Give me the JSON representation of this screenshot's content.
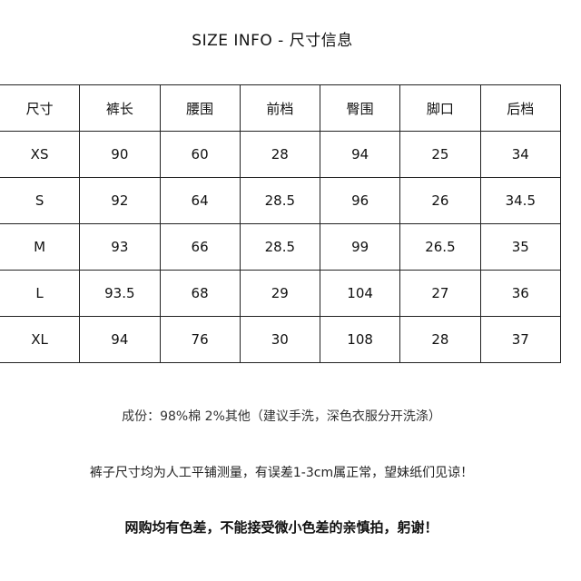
{
  "title": "SIZE INFO - 尺寸信息",
  "table": {
    "headers": [
      "尺寸",
      "裤长",
      "腰围",
      "前档",
      "臀围",
      "脚口",
      "后档"
    ],
    "rows": [
      [
        "XS",
        "90",
        "60",
        "28",
        "94",
        "25",
        "34"
      ],
      [
        "S",
        "92",
        "64",
        "28.5",
        "96",
        "26",
        "34.5"
      ],
      [
        "M",
        "93",
        "66",
        "28.5",
        "99",
        "26.5",
        "35"
      ],
      [
        "L",
        "93.5",
        "68",
        "29",
        "104",
        "27",
        "36"
      ],
      [
        "XL",
        "94",
        "76",
        "30",
        "108",
        "28",
        "37"
      ]
    ]
  },
  "notes": {
    "composition": "成份：98%棉 2%其他（建议手洗，深色衣服分开洗涤）",
    "measurement": "裤子尺寸均为人工平铺测量，有误差1-3cm属正常，望妹纸们见谅！",
    "color": "网购均有色差，不能接受微小色差的亲慎拍，躬谢！"
  }
}
